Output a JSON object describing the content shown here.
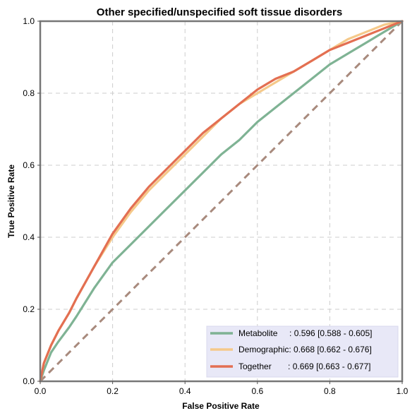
{
  "chart_data": {
    "type": "line",
    "title": "Other specified/unspecified soft tissue disorders",
    "xlabel": "False Positive Rate",
    "ylabel": "True Positive Rate",
    "xlim": [
      0,
      1
    ],
    "ylim": [
      0,
      1
    ],
    "xticks": [
      "0.0",
      "0.2",
      "0.4",
      "0.6",
      "0.8",
      "1.0"
    ],
    "yticks": [
      "0.0",
      "0.2",
      "0.4",
      "0.6",
      "0.8",
      "1.0"
    ],
    "grid": true,
    "legend_position": "bottom-right",
    "series": [
      {
        "name": "Metabolite",
        "legend_label": "Metabolite     : 0.596 [0.588 - 0.605]",
        "color": "#7fb394",
        "x": [
          0,
          0.01,
          0.03,
          0.05,
          0.08,
          0.1,
          0.15,
          0.2,
          0.25,
          0.3,
          0.35,
          0.4,
          0.45,
          0.5,
          0.55,
          0.6,
          0.65,
          0.7,
          0.75,
          0.8,
          0.85,
          0.9,
          0.95,
          1.0
        ],
        "y": [
          0,
          0.03,
          0.08,
          0.11,
          0.15,
          0.18,
          0.26,
          0.33,
          0.38,
          0.43,
          0.48,
          0.53,
          0.58,
          0.63,
          0.67,
          0.72,
          0.76,
          0.8,
          0.84,
          0.88,
          0.91,
          0.94,
          0.97,
          1.0
        ]
      },
      {
        "name": "Demographic",
        "legend_label": "Demographic: 0.668 [0.662 - 0.676]",
        "color": "#f5c98a",
        "x": [
          0,
          0.01,
          0.03,
          0.05,
          0.08,
          0.1,
          0.15,
          0.2,
          0.25,
          0.3,
          0.35,
          0.4,
          0.45,
          0.5,
          0.55,
          0.6,
          0.65,
          0.7,
          0.75,
          0.8,
          0.85,
          0.9,
          0.95,
          1.0
        ],
        "y": [
          0,
          0.05,
          0.1,
          0.14,
          0.19,
          0.23,
          0.32,
          0.4,
          0.47,
          0.53,
          0.58,
          0.63,
          0.68,
          0.73,
          0.77,
          0.8,
          0.83,
          0.86,
          0.89,
          0.92,
          0.95,
          0.97,
          0.99,
          1.0
        ]
      },
      {
        "name": "Together",
        "legend_label": "Together       : 0.669 [0.663 - 0.677]",
        "color": "#e36f52",
        "x": [
          0,
          0.01,
          0.03,
          0.05,
          0.08,
          0.1,
          0.15,
          0.2,
          0.25,
          0.3,
          0.35,
          0.4,
          0.45,
          0.5,
          0.55,
          0.6,
          0.65,
          0.7,
          0.75,
          0.8,
          0.85,
          0.9,
          0.95,
          1.0
        ],
        "y": [
          0,
          0.05,
          0.1,
          0.14,
          0.19,
          0.23,
          0.32,
          0.41,
          0.48,
          0.54,
          0.59,
          0.64,
          0.69,
          0.73,
          0.77,
          0.81,
          0.84,
          0.86,
          0.89,
          0.92,
          0.94,
          0.96,
          0.98,
          1.0
        ]
      }
    ],
    "reference_line": {
      "color": "#a88a7d",
      "x": [
        0,
        1
      ],
      "y": [
        0,
        1
      ]
    }
  }
}
